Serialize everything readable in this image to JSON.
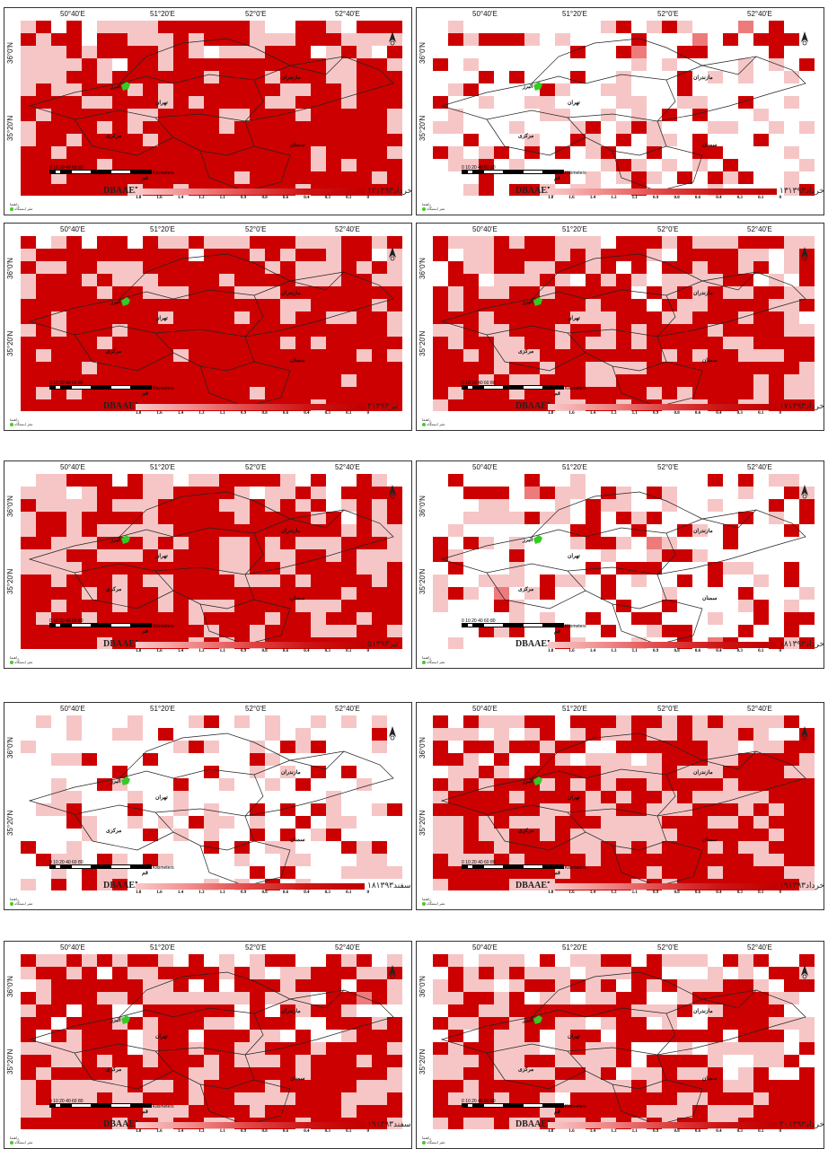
{
  "axis": {
    "lon_labels": [
      "50°40'E",
      "51°20'E",
      "52°0'E",
      "52°40'E"
    ],
    "lat_labels": [
      "36°0'N",
      "35°20'N"
    ]
  },
  "legend": {
    "title": "DBAAEL",
    "ticks": [
      "1.8",
      "1.6",
      "1.4",
      "1.3",
      "1.1",
      "0.9",
      "0.8",
      "0.6",
      "0.4",
      "0.3",
      "0.1",
      "0"
    ],
    "colors": [
      "#f9c9c9",
      "#f08a8a",
      "#e04646",
      "#cc1414",
      "#c00000"
    ]
  },
  "scalebar": {
    "numbers": "0  10  20      40      60      80",
    "unit": "Kilometers"
  },
  "footer": {
    "line1": "راهنما",
    "line2": "مقر ایستگاه"
  },
  "provinces": [
    "البرز",
    "مازندران",
    "مرکزی",
    "سمنان",
    "قم",
    "تهران"
  ],
  "panels": [
    {
      "date": "۱۲خرداد۱۳۹۳",
      "density": 0.85,
      "seed": 1,
      "show_lon": true
    },
    {
      "date": "۱۳خرداد۱۳۹۳",
      "density": 0.18,
      "seed": 2,
      "show_lon": true
    },
    {
      "date": "۴تیر۱۳۹۳",
      "density": 0.92,
      "seed": 3,
      "show_lon": true
    },
    {
      "date": "۱۷خرداد۱۳۹۳",
      "density": 0.75,
      "seed": 4,
      "show_lon": true
    },
    {
      "date": "۵تیر۱۳۹۳",
      "density": 0.8,
      "seed": 5,
      "show_lon": true
    },
    {
      "date": "۱۸خرداد۱۳۹۳",
      "density": 0.22,
      "seed": 6,
      "show_lon": true
    },
    {
      "date": "۱۸اسفند۱۳۹۳",
      "density": 0.12,
      "seed": 7,
      "show_lon": true
    },
    {
      "date": "۱۹خرداد۱۳۹۳",
      "density": 0.72,
      "seed": 8,
      "show_lon": true
    },
    {
      "date": "۱۹اسفند۱۳۹۳",
      "density": 0.7,
      "seed": 9,
      "show_lon": true
    },
    {
      "date": "۲۰خرداد۱۳۹۳",
      "density": 0.6,
      "seed": 10,
      "show_lon": true
    }
  ]
}
